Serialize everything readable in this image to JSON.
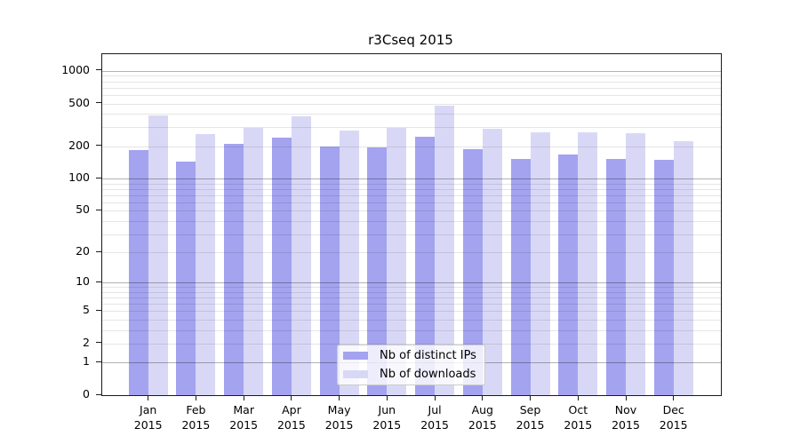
{
  "chart_data": {
    "type": "bar",
    "title": "r3Cseq 2015",
    "categories": [
      "Jan",
      "Feb",
      "Mar",
      "Apr",
      "May",
      "Jun",
      "Jul",
      "Aug",
      "Sep",
      "Oct",
      "Nov",
      "Dec"
    ],
    "x_tick_second_line": "2015",
    "series": [
      {
        "name": "Nb of distinct IPs",
        "color": "#a3a3ef",
        "values": [
          184,
          143,
          210,
          240,
          198,
          194,
          247,
          188,
          152,
          169,
          152,
          149
        ]
      },
      {
        "name": "Nb of downloads",
        "color": "#d8d8f6",
        "values": [
          388,
          262,
          297,
          377,
          282,
          297,
          478,
          289,
          272,
          272,
          265,
          224
        ]
      }
    ],
    "xlabel": "",
    "ylabel": "",
    "yscale": "log1p",
    "y_ticks": [
      0,
      1,
      2,
      5,
      10,
      20,
      50,
      100,
      200,
      500,
      1000
    ],
    "ylim": [
      0,
      1430
    ],
    "grid": "horizontal",
    "legend_position": "inside-bottom-center"
  }
}
